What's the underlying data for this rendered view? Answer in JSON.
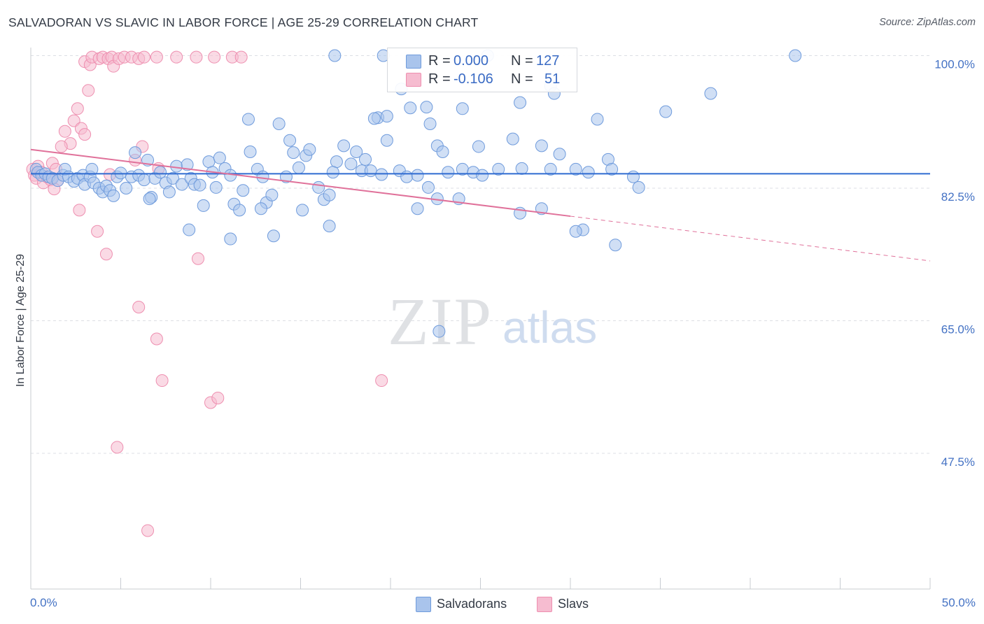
{
  "header": {
    "title": "SALVADORAN VS SLAVIC IN LABOR FORCE | AGE 25-29 CORRELATION CHART",
    "source": "Source: ZipAtlas.com"
  },
  "watermark": {
    "zip": "ZIP",
    "atlas": "atlas"
  },
  "legend": {
    "rows": [
      {
        "r_label": "R =",
        "r_value": "0.000",
        "n_label": "N =",
        "n_value": "127"
      },
      {
        "r_label": "R =",
        "r_value": "-0.106",
        "n_label": "N =",
        "n_value": "51"
      }
    ],
    "bottom": [
      "Salvadorans",
      "Slavs"
    ]
  },
  "colors": {
    "blue_fill": "#a9c4ec",
    "blue_stroke": "#6f9bdc",
    "blue_line": "#2f6bd1",
    "pink_fill": "#f6bcd0",
    "pink_stroke": "#ee8fb0",
    "pink_line": "#e0719a",
    "axis_text": "#4472c4",
    "grid": "#dcdfe4"
  },
  "chart_data": {
    "type": "scatter",
    "title": "SALVADORAN VS SLAVIC IN LABOR FORCE | AGE 25-29 CORRELATION CHART",
    "xlabel": "",
    "ylabel": "In Labor Force | Age 25-29",
    "xlim": [
      0,
      50
    ],
    "ylim": [
      30,
      100
    ],
    "x_tick_labels": [
      "0.0%",
      "50.0%"
    ],
    "y_ticks": [
      47.5,
      65.0,
      82.5,
      100.0
    ],
    "y_tick_labels": [
      "47.5%",
      "65.0%",
      "82.5%",
      "100.0%"
    ],
    "grid": true,
    "legend_position": "top-center",
    "series": [
      {
        "name": "Salvadorans",
        "color": "#a9c4ec",
        "r": 0.0,
        "n": 127,
        "trend": {
          "x": [
            0,
            50
          ],
          "y": [
            84.4,
            84.4
          ],
          "style": "solid"
        },
        "points": [
          [
            0.3,
            85.0
          ],
          [
            0.4,
            84.6
          ],
          [
            0.6,
            84.2
          ],
          [
            0.8,
            84.4
          ],
          [
            1.0,
            84.0
          ],
          [
            1.2,
            83.8
          ],
          [
            1.5,
            83.5
          ],
          [
            1.8,
            84.2
          ],
          [
            1.9,
            85.0
          ],
          [
            2.1,
            84.0
          ],
          [
            2.4,
            83.4
          ],
          [
            2.6,
            83.8
          ],
          [
            2.9,
            84.2
          ],
          [
            3.0,
            83.0
          ],
          [
            3.3,
            84.0
          ],
          [
            3.5,
            83.2
          ],
          [
            3.4,
            85.0
          ],
          [
            3.8,
            82.5
          ],
          [
            4.0,
            82.0
          ],
          [
            4.2,
            82.8
          ],
          [
            4.4,
            82.2
          ],
          [
            4.6,
            81.5
          ],
          [
            4.8,
            84.0
          ],
          [
            5.0,
            84.5
          ],
          [
            5.3,
            82.5
          ],
          [
            5.6,
            84.0
          ],
          [
            5.8,
            87.2
          ],
          [
            6.0,
            84.2
          ],
          [
            6.3,
            83.6
          ],
          [
            6.5,
            86.2
          ],
          [
            6.7,
            81.3
          ],
          [
            6.9,
            83.8
          ],
          [
            7.2,
            84.6
          ],
          [
            7.5,
            83.2
          ],
          [
            7.7,
            82.0
          ],
          [
            7.9,
            83.8
          ],
          [
            8.1,
            85.4
          ],
          [
            8.4,
            83.0
          ],
          [
            8.7,
            85.6
          ],
          [
            8.9,
            83.8
          ],
          [
            9.1,
            83.0
          ],
          [
            9.4,
            82.9
          ],
          [
            9.6,
            80.2
          ],
          [
            9.9,
            86.0
          ],
          [
            10.1,
            84.6
          ],
          [
            10.3,
            82.6
          ],
          [
            10.5,
            86.5
          ],
          [
            10.8,
            85.1
          ],
          [
            11.1,
            84.2
          ],
          [
            11.3,
            80.4
          ],
          [
            11.6,
            79.6
          ],
          [
            11.8,
            82.2
          ],
          [
            12.2,
            87.3
          ],
          [
            12.6,
            85.0
          ],
          [
            12.9,
            84.0
          ],
          [
            13.1,
            80.6
          ],
          [
            13.4,
            81.6
          ],
          [
            14.2,
            84.0
          ],
          [
            14.4,
            88.8
          ],
          [
            14.6,
            87.2
          ],
          [
            14.9,
            85.2
          ],
          [
            15.3,
            86.8
          ],
          [
            15.5,
            87.6
          ],
          [
            16.0,
            82.6
          ],
          [
            16.3,
            81.0
          ],
          [
            16.6,
            81.6
          ],
          [
            17.0,
            86.0
          ],
          [
            17.4,
            88.1
          ],
          [
            17.8,
            85.7
          ],
          [
            18.1,
            87.3
          ],
          [
            18.4,
            84.8
          ],
          [
            18.9,
            84.8
          ],
          [
            19.3,
            91.8
          ],
          [
            19.5,
            84.3
          ],
          [
            19.8,
            88.8
          ],
          [
            20.5,
            84.8
          ],
          [
            20.9,
            84.0
          ],
          [
            21.1,
            93.1
          ],
          [
            21.5,
            84.2
          ],
          [
            22.1,
            82.6
          ],
          [
            22.2,
            91.0
          ],
          [
            22.6,
            88.1
          ],
          [
            22.9,
            87.3
          ],
          [
            23.2,
            84.6
          ],
          [
            24.0,
            85.0
          ],
          [
            24.6,
            84.6
          ],
          [
            24.9,
            88.0
          ],
          [
            25.1,
            84.2
          ],
          [
            26.0,
            85.0
          ],
          [
            26.8,
            89.0
          ],
          [
            27.3,
            85.1
          ],
          [
            28.4,
            88.1
          ],
          [
            28.9,
            85.0
          ],
          [
            29.4,
            87.0
          ],
          [
            28.9,
            96.0
          ],
          [
            29.1,
            95.0
          ],
          [
            30.3,
            85.0
          ],
          [
            31.0,
            84.6
          ],
          [
            31.5,
            91.6
          ],
          [
            32.1,
            86.3
          ],
          [
            32.3,
            85.0
          ],
          [
            16.8,
            84.6
          ],
          [
            19.1,
            91.7
          ],
          [
            20.6,
            95.6
          ],
          [
            12.1,
            91.6
          ],
          [
            13.8,
            91.0
          ],
          [
            18.6,
            86.3
          ],
          [
            19.8,
            92.0
          ],
          [
            22.0,
            93.2
          ],
          [
            12.8,
            79.8
          ],
          [
            16.9,
            100.0
          ],
          [
            19.6,
            100.0
          ],
          [
            25.4,
            100.0
          ],
          [
            24.0,
            93.0
          ],
          [
            27.2,
            93.8
          ],
          [
            6.6,
            81.1
          ],
          [
            8.8,
            77.0
          ],
          [
            11.1,
            75.8
          ],
          [
            13.5,
            76.2
          ],
          [
            16.6,
            77.5
          ],
          [
            21.5,
            79.8
          ],
          [
            15.1,
            79.6
          ],
          [
            22.6,
            81.1
          ],
          [
            23.8,
            81.1
          ],
          [
            27.2,
            79.2
          ],
          [
            28.4,
            79.8
          ],
          [
            30.7,
            77.0
          ],
          [
            30.3,
            76.8
          ],
          [
            32.5,
            75.0
          ],
          [
            35.3,
            92.6
          ],
          [
            42.5,
            100.0
          ],
          [
            37.8,
            95.0
          ],
          [
            33.5,
            84.0
          ],
          [
            33.8,
            82.6
          ],
          [
            22.7,
            63.6
          ]
        ]
      },
      {
        "name": "Slavs",
        "color": "#f6bcd0",
        "r": -0.106,
        "n": 51,
        "trend": {
          "x": [
            0,
            30,
            50
          ],
          "y": [
            87.6,
            78.8,
            72.9
          ],
          "style": "solid-then-dashed",
          "solid_until": 30
        },
        "points": [
          [
            0.1,
            85.0
          ],
          [
            0.2,
            84.2
          ],
          [
            0.3,
            83.8
          ],
          [
            0.4,
            85.4
          ],
          [
            0.6,
            84.6
          ],
          [
            0.7,
            83.2
          ],
          [
            0.9,
            84.0
          ],
          [
            1.1,
            83.6
          ],
          [
            1.2,
            85.8
          ],
          [
            1.4,
            85.0
          ],
          [
            1.5,
            83.5
          ],
          [
            1.3,
            82.4
          ],
          [
            1.9,
            90.0
          ],
          [
            2.2,
            88.4
          ],
          [
            1.7,
            88.0
          ],
          [
            2.4,
            91.4
          ],
          [
            2.6,
            93.0
          ],
          [
            2.8,
            90.4
          ],
          [
            3.0,
            89.6
          ],
          [
            3.2,
            95.4
          ],
          [
            3.0,
            99.2
          ],
          [
            3.3,
            98.8
          ],
          [
            3.4,
            99.8
          ],
          [
            3.8,
            99.6
          ],
          [
            4.0,
            99.8
          ],
          [
            4.3,
            99.6
          ],
          [
            4.5,
            99.8
          ],
          [
            4.6,
            98.6
          ],
          [
            4.9,
            99.6
          ],
          [
            5.2,
            99.8
          ],
          [
            5.6,
            99.8
          ],
          [
            6.0,
            99.6
          ],
          [
            6.3,
            99.8
          ],
          [
            7.0,
            99.8
          ],
          [
            8.1,
            99.8
          ],
          [
            9.2,
            99.8
          ],
          [
            10.2,
            99.8
          ],
          [
            11.2,
            99.8
          ],
          [
            2.7,
            79.6
          ],
          [
            3.7,
            76.8
          ],
          [
            4.2,
            73.8
          ],
          [
            6.0,
            66.8
          ],
          [
            7.0,
            62.6
          ],
          [
            7.3,
            57.1
          ],
          [
            10.0,
            54.2
          ],
          [
            10.4,
            54.8
          ],
          [
            9.3,
            73.2
          ],
          [
            11.7,
            99.8
          ],
          [
            6.2,
            88.0
          ],
          [
            7.1,
            85.1
          ],
          [
            5.8,
            86.2
          ],
          [
            4.4,
            84.3
          ],
          [
            19.5,
            57.1
          ],
          [
            4.8,
            48.3
          ],
          [
            6.5,
            37.3
          ]
        ]
      }
    ]
  }
}
